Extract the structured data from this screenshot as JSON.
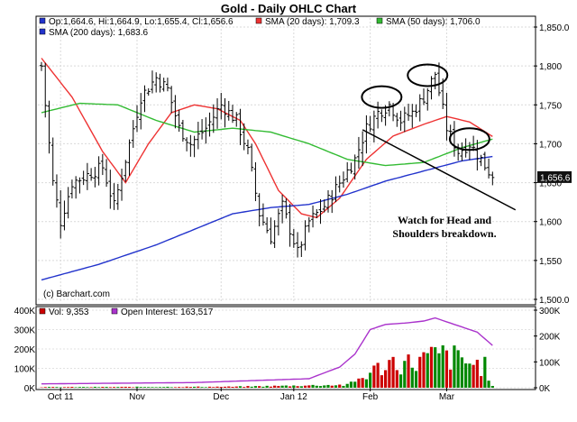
{
  "chart_data": {
    "title": "Gold - Daily OHLC Chart",
    "type": "ohlc",
    "legend": {
      "ohlc": "Op:1,664.6, Hi:1,664.9, Lo:1,655.4, Cl:1,656.6",
      "sma20": "SMA (20 days): 1,709.3",
      "sma50": "SMA (50 days): 1,706.0",
      "sma200": "SMA (200 days): 1,683.6",
      "vol": "Vol: 9,353",
      "oi": "Open Interest: 163,517"
    },
    "colors": {
      "sma20": "#ee3333",
      "sma50": "#33bb33",
      "sma200": "#2233cc",
      "oi": "#aa33cc",
      "bar_up": "#cc0000",
      "bar_down": "#008800",
      "panel_border": "#000000"
    },
    "watermark": "(c) Barchart.com",
    "annotation": "Watch for Head and Shoulders breakdown.",
    "last_price_label": "1,656.6",
    "last_price": 1656.6,
    "price_axis": {
      "min": 1500,
      "max": 1850,
      "ticks": [
        1850,
        1800,
        1750,
        1700,
        1650,
        1600,
        1550,
        1500
      ],
      "tick_labels": [
        "1,850.0",
        "1,800",
        "1,750",
        "1,700",
        "1,650",
        "1,600",
        "1,550",
        "1,500.0"
      ]
    },
    "volume_axis_left": {
      "min": 0,
      "max": 400000,
      "ticks": [
        0,
        100000,
        200000,
        300000,
        400000
      ],
      "tick_labels": [
        "0K",
        "100K",
        "200K",
        "300K",
        "400K"
      ]
    },
    "oi_axis_right": {
      "min": 0,
      "max": 300000,
      "ticks": [
        0,
        100000,
        200000,
        300000
      ],
      "tick_labels": [
        "0K",
        "100K",
        "200K",
        "300K"
      ]
    },
    "x_labels": [
      {
        "label": "Oct 11",
        "index": 5
      },
      {
        "label": "Nov",
        "index": 25
      },
      {
        "label": "Dec",
        "index": 47
      },
      {
        "label": "Jan 12",
        "index": 66
      },
      {
        "label": "Feb",
        "index": 86
      },
      {
        "label": "Mar",
        "index": 106
      }
    ],
    "num_bars": 119,
    "price_close_anchors": [
      [
        0,
        1800
      ],
      [
        3,
        1650
      ],
      [
        5,
        1600
      ],
      [
        8,
        1650
      ],
      [
        12,
        1660
      ],
      [
        16,
        1670
      ],
      [
        19,
        1620
      ],
      [
        22,
        1680
      ],
      [
        26,
        1760
      ],
      [
        30,
        1785
      ],
      [
        33,
        1770
      ],
      [
        36,
        1720
      ],
      [
        39,
        1700
      ],
      [
        43,
        1720
      ],
      [
        47,
        1750
      ],
      [
        51,
        1730
      ],
      [
        54,
        1690
      ],
      [
        57,
        1610
      ],
      [
        60,
        1580
      ],
      [
        63,
        1620
      ],
      [
        65,
        1590
      ],
      [
        67,
        1560
      ],
      [
        70,
        1600
      ],
      [
        74,
        1620
      ],
      [
        78,
        1650
      ],
      [
        82,
        1680
      ],
      [
        85,
        1720
      ],
      [
        88,
        1740
      ],
      [
        91,
        1750
      ],
      [
        94,
        1730
      ],
      [
        97,
        1740
      ],
      [
        100,
        1760
      ],
      [
        103,
        1790
      ],
      [
        106,
        1720
      ],
      [
        109,
        1690
      ],
      [
        112,
        1700
      ],
      [
        115,
        1680
      ],
      [
        118,
        1656.6
      ]
    ],
    "sma20_anchors": [
      [
        0,
        1810
      ],
      [
        8,
        1760
      ],
      [
        16,
        1690
      ],
      [
        22,
        1650
      ],
      [
        28,
        1700
      ],
      [
        34,
        1740
      ],
      [
        40,
        1750
      ],
      [
        46,
        1745
      ],
      [
        52,
        1730
      ],
      [
        56,
        1700
      ],
      [
        62,
        1640
      ],
      [
        68,
        1610
      ],
      [
        72,
        1605
      ],
      [
        78,
        1630
      ],
      [
        85,
        1680
      ],
      [
        92,
        1710
      ],
      [
        100,
        1725
      ],
      [
        106,
        1735
      ],
      [
        112,
        1728
      ],
      [
        118,
        1709.3
      ]
    ],
    "sma50_anchors": [
      [
        0,
        1740
      ],
      [
        10,
        1752
      ],
      [
        20,
        1750
      ],
      [
        30,
        1730
      ],
      [
        40,
        1715
      ],
      [
        50,
        1720
      ],
      [
        60,
        1715
      ],
      [
        70,
        1700
      ],
      [
        80,
        1680
      ],
      [
        90,
        1672
      ],
      [
        100,
        1676
      ],
      [
        110,
        1695
      ],
      [
        118,
        1706
      ]
    ],
    "sma200_anchors": [
      [
        0,
        1525
      ],
      [
        15,
        1545
      ],
      [
        30,
        1570
      ],
      [
        40,
        1590
      ],
      [
        50,
        1610
      ],
      [
        60,
        1618
      ],
      [
        70,
        1622
      ],
      [
        80,
        1635
      ],
      [
        90,
        1652
      ],
      [
        100,
        1665
      ],
      [
        110,
        1678
      ],
      [
        118,
        1683.6
      ]
    ],
    "volume_anchors": [
      [
        0,
        3000
      ],
      [
        50,
        5000
      ],
      [
        80,
        15000
      ],
      [
        84,
        60000
      ],
      [
        88,
        110000
      ],
      [
        92,
        150000
      ],
      [
        96,
        140000
      ],
      [
        100,
        160000
      ],
      [
        104,
        185000
      ],
      [
        108,
        170000
      ],
      [
        112,
        140000
      ],
      [
        116,
        120000
      ],
      [
        118,
        9353
      ]
    ],
    "oi_anchors": [
      [
        0,
        15000
      ],
      [
        40,
        20000
      ],
      [
        70,
        35000
      ],
      [
        78,
        80000
      ],
      [
        82,
        130000
      ],
      [
        86,
        225000
      ],
      [
        90,
        245000
      ],
      [
        95,
        250000
      ],
      [
        100,
        258000
      ],
      [
        103,
        270000
      ],
      [
        106,
        255000
      ],
      [
        110,
        235000
      ],
      [
        114,
        215000
      ],
      [
        118,
        163517
      ]
    ],
    "head_shoulders_highlight": [
      {
        "role": "left-shoulder",
        "index": 89,
        "price": 1760
      },
      {
        "role": "head",
        "index": 101,
        "price": 1788
      },
      {
        "role": "right-shoulder",
        "index": 112,
        "price": 1706
      }
    ],
    "trend_line": {
      "from": {
        "index": 84,
        "price": 1718
      },
      "to": {
        "index": 124,
        "price": 1615
      }
    }
  }
}
